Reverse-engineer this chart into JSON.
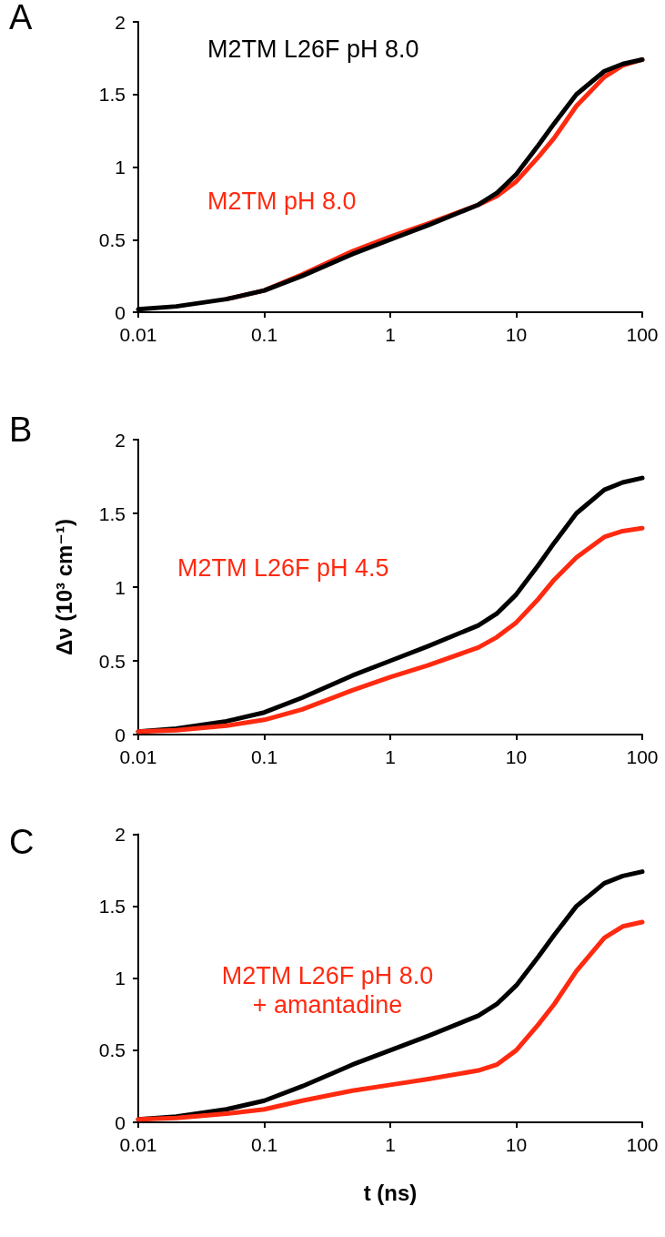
{
  "chart_data": [
    {
      "type": "line",
      "title": "A",
      "x": [
        0.01,
        0.02,
        0.05,
        0.1,
        0.2,
        0.5,
        1,
        2,
        5,
        7,
        10,
        15,
        20,
        30,
        50,
        70,
        100
      ],
      "xlim": [
        0.01,
        100
      ],
      "xticks": [
        0.01,
        0.1,
        1,
        10,
        100
      ],
      "ylim": [
        0,
        2
      ],
      "yticks": [
        0,
        0.5,
        1,
        1.5,
        2
      ],
      "log": "x",
      "grid": false,
      "legend": false,
      "marker": "none",
      "line_style": "solid",
      "series": [
        {
          "name": "M2TM pH 8.0",
          "color": "#ff2a10",
          "values": [
            null,
            null,
            0.09,
            0.15,
            0.26,
            0.42,
            0.52,
            0.61,
            0.74,
            0.8,
            0.9,
            1.07,
            1.2,
            1.42,
            1.62,
            1.7,
            1.74
          ]
        },
        {
          "name": "M2TM L26F pH 8.0",
          "color": "#000000",
          "values": [
            0.02,
            0.04,
            0.09,
            0.15,
            0.25,
            0.4,
            0.5,
            0.6,
            0.74,
            0.82,
            0.95,
            1.15,
            1.3,
            1.5,
            1.66,
            1.71,
            1.74
          ]
        }
      ]
    },
    {
      "type": "line",
      "title": "B",
      "ylabel": "Δν (10³ cm⁻¹)",
      "x": [
        0.01,
        0.02,
        0.05,
        0.1,
        0.2,
        0.5,
        1,
        2,
        5,
        7,
        10,
        15,
        20,
        30,
        50,
        70,
        100
      ],
      "xlim": [
        0.01,
        100
      ],
      "xticks": [
        0.01,
        0.1,
        1,
        10,
        100
      ],
      "ylim": [
        0,
        2
      ],
      "yticks": [
        0,
        0.5,
        1,
        1.5,
        2
      ],
      "log": "x",
      "grid": false,
      "legend": false,
      "marker": "none",
      "line_style": "solid",
      "series": [
        {
          "color": "#000000",
          "values": [
            0.02,
            0.04,
            0.09,
            0.15,
            0.25,
            0.4,
            0.5,
            0.6,
            0.74,
            0.82,
            0.95,
            1.15,
            1.3,
            1.5,
            1.66,
            1.71,
            1.74
          ]
        },
        {
          "name": "M2TM L26F pH 4.5",
          "color": "#ff2a10",
          "values": [
            0.02,
            0.03,
            0.06,
            0.1,
            0.17,
            0.3,
            0.39,
            0.47,
            0.59,
            0.66,
            0.76,
            0.92,
            1.05,
            1.2,
            1.34,
            1.38,
            1.4
          ]
        }
      ]
    },
    {
      "type": "line",
      "title": "C",
      "xlabel": "t (ns)",
      "x": [
        0.01,
        0.02,
        0.05,
        0.1,
        0.2,
        0.5,
        1,
        2,
        5,
        7,
        10,
        15,
        20,
        30,
        50,
        70,
        100
      ],
      "xlim": [
        0.01,
        100
      ],
      "xticks": [
        0.01,
        0.1,
        1,
        10,
        100
      ],
      "ylim": [
        0,
        2
      ],
      "yticks": [
        0,
        0.5,
        1,
        1.5,
        2
      ],
      "log": "x",
      "grid": false,
      "legend": false,
      "marker": "none",
      "line_style": "solid",
      "series": [
        {
          "color": "#000000",
          "values": [
            0.02,
            0.04,
            0.09,
            0.15,
            0.25,
            0.4,
            0.5,
            0.6,
            0.74,
            0.82,
            0.95,
            1.15,
            1.3,
            1.5,
            1.66,
            1.71,
            1.74
          ]
        },
        {
          "name": "M2TM L26F pH 8.0\n+ amantadine",
          "color": "#ff2a10",
          "values": [
            0.02,
            0.03,
            0.06,
            0.09,
            0.15,
            0.22,
            0.26,
            0.3,
            0.36,
            0.4,
            0.5,
            0.68,
            0.82,
            1.05,
            1.28,
            1.36,
            1.39
          ]
        }
      ]
    }
  ]
}
